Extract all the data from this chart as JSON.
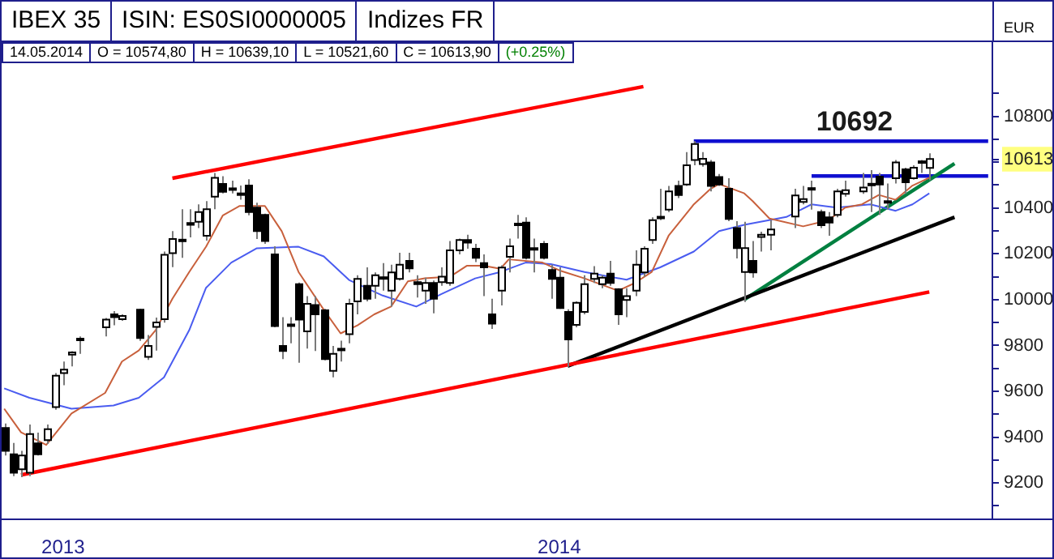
{
  "chart_data": {
    "type": "candlestick",
    "title": "IBEX 35",
    "subtitle": "ISIN: ES0SI0000005",
    "ylabel": "EUR",
    "annotations": [
      "Indizes FR",
      "14.05.2014",
      "O = 10574,80",
      "H = 10639,10",
      "L = 10521,60",
      "C = 10613,90",
      "(+0.25%)",
      {
        "text": "10692",
        "y": 10692
      }
    ],
    "categories": [
      null,
      null,
      null,
      null,
      null,
      null,
      null,
      "2013",
      null,
      null,
      null,
      null,
      null,
      null,
      null,
      null,
      null,
      null,
      null,
      null,
      null,
      null,
      null,
      null,
      null,
      null,
      null,
      null,
      null,
      null,
      null,
      null,
      null,
      null,
      null,
      null,
      null,
      null,
      null,
      null,
      null,
      null,
      null,
      null,
      null,
      null,
      null,
      null,
      null,
      null,
      null,
      null,
      null,
      null,
      null,
      null,
      null,
      null,
      null,
      null,
      null,
      null,
      null,
      null,
      null,
      null,
      "2014",
      null,
      null,
      null,
      null,
      null,
      null,
      null,
      null,
      null,
      null,
      null,
      null,
      null,
      null,
      null,
      null,
      null,
      null,
      null,
      null,
      null,
      null,
      null,
      null,
      null,
      null,
      null,
      null,
      null,
      null,
      null,
      null,
      null,
      null,
      null,
      null,
      null,
      null,
      null,
      null,
      null,
      null,
      null,
      null,
      null,
      null,
      null,
      null,
      null,
      null,
      null
    ],
    "ohlc": [
      [
        9440,
        9460,
        9320,
        9340
      ],
      [
        9325,
        9375,
        9230,
        9245
      ],
      [
        9260,
        9340,
        9225,
        9320
      ],
      [
        9245,
        9455,
        9230,
        9414
      ],
      [
        9373,
        9420,
        9320,
        9325
      ],
      [
        9387,
        9455,
        9370,
        9435
      ],
      [
        9531,
        9680,
        9520,
        9668
      ],
      [
        9680,
        9730,
        9627,
        9695
      ],
      [
        9760,
        9775,
        9709,
        9770
      ],
      [
        9825,
        9840,
        9764,
        9830
      ],
      null,
      null,
      [
        9879,
        9920,
        9840,
        9913
      ],
      [
        9936,
        9950,
        9888,
        9924
      ],
      [
        9915,
        9936,
        9908,
        9929
      ],
      null,
      [
        9956,
        9960,
        9820,
        9833
      ],
      [
        9750,
        9846,
        9737,
        9798
      ],
      [
        9881,
        9922,
        9778,
        9901
      ],
      [
        9915,
        10210,
        9900,
        10196
      ],
      [
        10203,
        10299,
        10142,
        10265
      ],
      [
        10262,
        10395,
        10183,
        10255
      ],
      [
        10335,
        10395,
        10272,
        10327
      ],
      [
        10340,
        10416,
        10313,
        10382
      ],
      [
        10279,
        10430,
        10258,
        10395
      ],
      [
        10450,
        10553,
        10395,
        10532
      ],
      [
        10505,
        10539,
        10464,
        10471
      ],
      [
        10482,
        10519,
        10464,
        10486
      ],
      [
        10457,
        10498,
        10436,
        10464
      ],
      [
        10498,
        10526,
        10368,
        10382
      ],
      [
        10402,
        10423,
        10265,
        10299
      ],
      [
        10370,
        10375,
        10244,
        10256
      ],
      [
        10198,
        10233,
        9879,
        9885
      ],
      [
        9798,
        9924,
        9741,
        9776
      ],
      [
        9885,
        9924,
        9810,
        9892
      ],
      [
        10068,
        10075,
        9725,
        9913
      ],
      [
        9862,
        10016,
        9787,
        9982
      ],
      [
        9977,
        10016,
        9776,
        9936
      ],
      [
        9954,
        9960,
        9735,
        9741
      ],
      [
        9689,
        9798,
        9661,
        9764
      ],
      [
        9780,
        9821,
        9730,
        9786
      ],
      [
        9849,
        10004,
        9810,
        9982
      ],
      [
        9993,
        10107,
        9936,
        10091
      ],
      [
        10061,
        10141,
        9993,
        10004
      ],
      [
        10061,
        10119,
        10004,
        10107
      ],
      [
        10094,
        10160,
        10039,
        10098
      ],
      [
        10039,
        10153,
        9970,
        10119
      ],
      [
        10091,
        10205,
        10084,
        10153
      ],
      [
        10169,
        10205,
        10119,
        10137
      ],
      [
        10077,
        10107,
        10009,
        10068
      ],
      [
        10039,
        10096,
        9982,
        10073
      ],
      [
        10073,
        10084,
        9940,
        10004
      ],
      [
        10077,
        10141,
        10061,
        10100
      ],
      [
        10073,
        10256,
        10061,
        10215
      ],
      [
        10215,
        10267,
        10198,
        10260
      ],
      [
        10260,
        10283,
        10222,
        10249
      ],
      [
        10222,
        10244,
        10164,
        10183
      ],
      [
        10160,
        10198,
        10016,
        10141
      ],
      [
        9936,
        10004,
        9872,
        9895
      ],
      [
        10039,
        10150,
        9975,
        10140
      ],
      [
        10187,
        10267,
        10119,
        10233
      ],
      [
        10325,
        10370,
        10267,
        10332
      ],
      [
        10336,
        10359,
        10176,
        10183
      ],
      [
        10220,
        10267,
        10119,
        10225
      ],
      [
        10244,
        10256,
        10176,
        10183
      ],
      [
        10130,
        10153,
        10004,
        10091
      ],
      [
        10096,
        10141,
        9960,
        9963
      ],
      [
        9947,
        9958,
        9707,
        9826
      ],
      [
        9890,
        9993,
        9879,
        9986
      ],
      [
        9947,
        10107,
        9936,
        10068
      ],
      [
        10091,
        10146,
        10073,
        10114
      ],
      [
        10068,
        10107,
        10050,
        10096
      ],
      [
        10114,
        10169,
        10061,
        10073
      ],
      [
        10046,
        10050,
        9890,
        9936
      ],
      [
        9999,
        10050,
        9924,
        10016
      ],
      [
        10039,
        10215,
        10016,
        10153
      ],
      [
        10119,
        10233,
        10100,
        10222
      ],
      [
        10260,
        10359,
        10244,
        10347
      ],
      [
        10355,
        10484,
        10347,
        10362
      ],
      [
        10393,
        10496,
        10382,
        10473
      ],
      [
        10496,
        10519,
        10443,
        10457
      ],
      [
        10503,
        10644,
        10496,
        10587
      ],
      [
        10610,
        10692,
        10587,
        10679
      ],
      [
        10592,
        10644,
        10580,
        10615
      ],
      [
        10599,
        10610,
        10473,
        10496
      ],
      [
        10535,
        10549,
        10496,
        10503
      ],
      [
        10484,
        10530,
        10343,
        10352
      ],
      [
        10313,
        10343,
        10180,
        10225
      ],
      [
        10121,
        10340,
        9990,
        10225
      ],
      [
        10169,
        10256,
        10096,
        10119
      ],
      [
        10274,
        10297,
        10210,
        10283
      ],
      [
        10283,
        10347,
        10215,
        10306
      ],
      null,
      null,
      [
        10363,
        10484,
        10313,
        10455
      ],
      [
        10427,
        10496,
        10416,
        10439
      ],
      [
        10480,
        10519,
        10393,
        10487
      ],
      [
        10382,
        10393,
        10313,
        10325
      ],
      [
        10359,
        10382,
        10279,
        10336
      ],
      [
        10370,
        10484,
        10359,
        10473
      ],
      [
        10462,
        10519,
        10450,
        10478
      ],
      null,
      [
        10473,
        10553,
        10462,
        10489
      ],
      [
        10500,
        10565,
        10382,
        10506
      ],
      [
        10537,
        10553,
        10370,
        10503
      ],
      [
        10425,
        10507,
        10393,
        10430
      ],
      [
        10530,
        10610,
        10507,
        10599
      ],
      [
        10569,
        10576,
        10462,
        10512
      ],
      [
        10530,
        10587,
        10524,
        10576
      ],
      [
        10600,
        10610,
        10553,
        10604
      ],
      [
        10574.8,
        10639.1,
        10521.6,
        10613.9
      ],
      null,
      null,
      null,
      null,
      null,
      null,
      null
    ],
    "series": [
      {
        "type": "line",
        "color": "#c8603c",
        "values": [
          9524,
          null,
          9421,
          null,
          null,
          9366,
          null,
          null,
          9503,
          null,
          null,
          null,
          9593,
          null,
          9730,
          null,
          9778,
          null,
          9867,
          null,
          10004,
          null,
          10121,
          null,
          10231,
          null,
          10368,
          null,
          10409,
          null,
          null,
          10409,
          null,
          10299,
          null,
          10121,
          null,
          null,
          9956,
          null,
          9853,
          null,
          9888,
          null,
          9936,
          null,
          9970,
          null,
          10080,
          null,
          10093,
          null,
          null,
          10100,
          null,
          10148,
          null,
          10148,
          null,
          10135,
          10176,
          null,
          null,
          null,
          10162,
          null,
          10128,
          null,
          null,
          10093,
          null,
          null,
          null,
          10039,
          null,
          10073,
          null,
          10121,
          null,
          10279,
          null,
          null,
          10416,
          null,
          10484,
          10505,
          null,
          null,
          10464,
          10430,
          null,
          10354,
          null,
          null,
          null,
          10320,
          null,
          null,
          10347,
          null,
          10402,
          null,
          10416,
          null,
          10457,
          null,
          10436,
          null,
          10498,
          null,
          10532,
          null,
          null,
          null,
          null,
          null,
          null,
          null
        ]
      },
      {
        "type": "line",
        "color": "#4a5cf0",
        "values": [
          9613,
          null,
          null,
          9572,
          null,
          null,
          null,
          null,
          9524,
          null,
          null,
          null,
          null,
          9538,
          null,
          null,
          9572,
          null,
          null,
          9661,
          null,
          null,
          9867,
          null,
          10052,
          null,
          null,
          10162,
          null,
          null,
          10224,
          null,
          null,
          null,
          null,
          10231,
          null,
          null,
          10189,
          null,
          null,
          10086,
          null,
          null,
          null,
          10018,
          null,
          null,
          null,
          9970,
          null,
          null,
          10025,
          null,
          null,
          null,
          10093,
          null,
          null,
          10121,
          null,
          null,
          10162,
          null,
          null,
          10155,
          null,
          null,
          null,
          10121,
          null,
          null,
          null,
          null,
          10087,
          null,
          null,
          null,
          10141,
          null,
          null,
          null,
          10210,
          null,
          null,
          10299,
          null,
          null,
          10327,
          null,
          null,
          null,
          null,
          10361,
          null,
          null,
          10416,
          null,
          null,
          10402,
          null,
          null,
          null,
          10416,
          null,
          null,
          10388,
          null,
          10416,
          null,
          10464,
          null,
          null,
          null,
          null,
          null,
          null,
          null
        ]
      },
      {
        "type": "line",
        "color": "#ff0000",
        "values": [
          null,
          null,
          null,
          null,
          null,
          null,
          null,
          null,
          null,
          null,
          null,
          null,
          null,
          null,
          null,
          null,
          null,
          null,
          null,
          null,
          10530,
          null,
          null,
          null,
          null,
          null,
          null,
          null,
          null,
          null,
          null,
          null,
          null,
          null,
          null,
          null,
          null,
          null,
          null,
          null,
          null,
          null,
          null,
          null,
          null,
          null,
          null,
          null,
          null,
          null,
          null,
          null,
          null,
          null,
          null,
          null,
          null,
          null,
          null,
          null,
          null,
          null,
          null,
          null,
          null,
          null,
          null,
          null,
          null,
          null,
          null,
          null,
          null,
          null,
          null,
          null,
          10930,
          null,
          null,
          null,
          null,
          null,
          null,
          null,
          null,
          null,
          null,
          null,
          null,
          null,
          null,
          null,
          null,
          null,
          null,
          null,
          null,
          null,
          null,
          null,
          null,
          null,
          null,
          null,
          null,
          null,
          null,
          null,
          null,
          null,
          null,
          null,
          null,
          null,
          null,
          null,
          null,
          null
        ]
      },
      {
        "type": "line",
        "color": "#ff0000",
        "values": [
          null,
          null,
          9235,
          null,
          null,
          null,
          null,
          null,
          null,
          null,
          null,
          null,
          null,
          null,
          null,
          null,
          null,
          null,
          null,
          null,
          null,
          null,
          null,
          null,
          null,
          null,
          null,
          null,
          null,
          null,
          null,
          null,
          null,
          null,
          null,
          null,
          null,
          null,
          null,
          null,
          null,
          null,
          null,
          null,
          null,
          null,
          null,
          null,
          null,
          null,
          null,
          null,
          null,
          null,
          null,
          null,
          null,
          null,
          null,
          null,
          null,
          null,
          null,
          null,
          null,
          null,
          null,
          null,
          null,
          null,
          null,
          null,
          null,
          null,
          null,
          null,
          null,
          null,
          null,
          null,
          null,
          null,
          null,
          null,
          null,
          null,
          null,
          null,
          null,
          null,
          null,
          null,
          null,
          null,
          null,
          null,
          null,
          null,
          null,
          null,
          null,
          null,
          null,
          null,
          null,
          null,
          null,
          null,
          null,
          null,
          10034,
          null,
          null,
          null,
          null,
          null,
          null,
          null
        ]
      },
      {
        "type": "line",
        "color": "#000000",
        "values": [
          null,
          null,
          null,
          null,
          null,
          null,
          null,
          null,
          null,
          null,
          null,
          null,
          null,
          null,
          null,
          null,
          null,
          null,
          null,
          null,
          null,
          null,
          null,
          null,
          null,
          null,
          null,
          null,
          null,
          null,
          null,
          null,
          null,
          null,
          null,
          null,
          null,
          null,
          null,
          null,
          null,
          null,
          null,
          null,
          null,
          null,
          null,
          null,
          null,
          null,
          null,
          null,
          null,
          null,
          null,
          null,
          null,
          null,
          null,
          null,
          null,
          null,
          null,
          null,
          null,
          null,
          null,
          9710,
          null,
          null,
          null,
          null,
          null,
          null,
          null,
          null,
          null,
          null,
          null,
          null,
          null,
          null,
          null,
          null,
          null,
          null,
          null,
          null,
          null,
          null,
          null,
          null,
          null,
          null,
          null,
          null,
          null,
          null,
          null,
          null,
          null,
          null,
          null,
          null,
          null,
          null,
          null,
          null,
          null,
          null,
          null,
          null,
          null,
          10360,
          null,
          null,
          null,
          null
        ]
      },
      {
        "type": "line",
        "color": "#008040",
        "values": [
          null,
          null,
          null,
          null,
          null,
          null,
          null,
          null,
          null,
          null,
          null,
          null,
          null,
          null,
          null,
          null,
          null,
          null,
          null,
          null,
          null,
          null,
          null,
          null,
          null,
          null,
          null,
          null,
          null,
          null,
          null,
          null,
          null,
          null,
          null,
          null,
          null,
          null,
          null,
          null,
          null,
          null,
          null,
          null,
          null,
          null,
          null,
          null,
          null,
          null,
          null,
          null,
          null,
          null,
          null,
          null,
          null,
          null,
          null,
          null,
          null,
          null,
          null,
          null,
          null,
          null,
          null,
          null,
          null,
          null,
          null,
          null,
          null,
          null,
          null,
          null,
          null,
          null,
          null,
          null,
          null,
          null,
          null,
          null,
          null,
          null,
          null,
          null,
          10000,
          null,
          null,
          null,
          null,
          null,
          null,
          null,
          null,
          null,
          null,
          null,
          null,
          null,
          null,
          null,
          null,
          null,
          null,
          null,
          null,
          null,
          null,
          null,
          null,
          10594,
          null,
          null,
          null,
          null
        ]
      },
      {
        "type": "line",
        "color": "#1010d0",
        "values": [
          null,
          null,
          null,
          null,
          null,
          null,
          null,
          null,
          null,
          null,
          null,
          null,
          null,
          null,
          null,
          null,
          null,
          null,
          null,
          null,
          null,
          null,
          null,
          null,
          null,
          null,
          null,
          null,
          null,
          null,
          null,
          null,
          null,
          null,
          null,
          null,
          null,
          null,
          null,
          null,
          null,
          null,
          null,
          null,
          null,
          null,
          null,
          null,
          null,
          null,
          null,
          null,
          null,
          null,
          null,
          null,
          null,
          null,
          null,
          null,
          null,
          null,
          null,
          null,
          null,
          null,
          null,
          null,
          null,
          null,
          null,
          null,
          null,
          null,
          null,
          null,
          null,
          null,
          null,
          null,
          null,
          null,
          10692,
          null,
          null,
          null,
          null,
          null,
          null,
          null,
          null,
          null,
          null,
          null,
          null,
          null,
          null,
          null,
          null,
          null,
          null,
          null,
          null,
          null,
          null,
          null,
          null,
          null,
          null,
          null,
          null,
          null,
          null,
          null,
          null,
          null,
          null,
          10692
        ]
      },
      {
        "type": "line",
        "color": "#1010d0",
        "values": [
          null,
          null,
          null,
          null,
          null,
          null,
          null,
          null,
          null,
          null,
          null,
          null,
          null,
          null,
          null,
          null,
          null,
          null,
          null,
          null,
          null,
          null,
          null,
          null,
          null,
          null,
          null,
          null,
          null,
          null,
          null,
          null,
          null,
          null,
          null,
          null,
          null,
          null,
          null,
          null,
          null,
          null,
          null,
          null,
          null,
          null,
          null,
          null,
          null,
          null,
          null,
          null,
          null,
          null,
          null,
          null,
          null,
          null,
          null,
          null,
          null,
          null,
          null,
          null,
          null,
          null,
          null,
          null,
          null,
          null,
          null,
          null,
          null,
          null,
          null,
          null,
          null,
          null,
          null,
          null,
          null,
          null,
          null,
          null,
          null,
          null,
          null,
          null,
          null,
          null,
          null,
          null,
          null,
          null,
          null,
          null,
          10540,
          null,
          null,
          null,
          null,
          null,
          null,
          null,
          null,
          null,
          null,
          null,
          null,
          null,
          null,
          null,
          null,
          null,
          null,
          null,
          null,
          10540
        ]
      }
    ],
    "ylim": [
      9045,
      11240
    ],
    "yticks": [
      {
        "value": 9100,
        "label": null
      },
      9200,
      {
        "value": 9300,
        "label": null
      },
      9400,
      {
        "value": 9500,
        "label": null
      },
      9600,
      {
        "value": 9700,
        "label": null
      },
      9800,
      {
        "value": 9900,
        "label": null
      },
      10000,
      {
        "value": 10100,
        "label": null
      },
      10200,
      {
        "value": 10300,
        "label": null
      },
      10400,
      {
        "value": 10500,
        "label": null
      },
      {
        "value": 10600,
        "label": null
      },
      {
        "value": 10700,
        "label": null
      },
      10800,
      {
        "value": 10900,
        "label": null
      },
      {
        "value": 10613,
        "label": "10613"
      }
    ]
  }
}
